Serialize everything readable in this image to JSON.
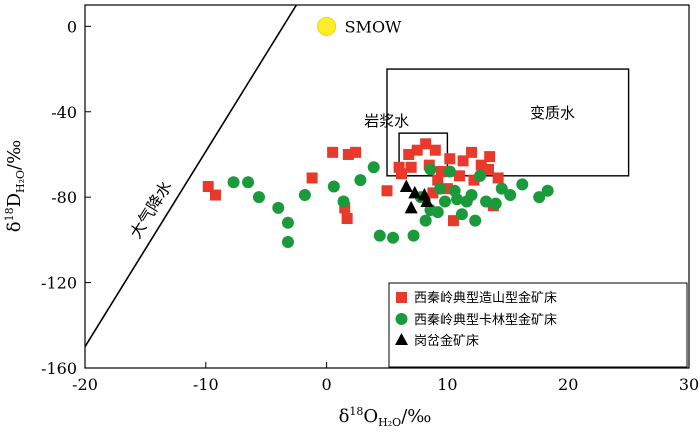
{
  "chart_data": {
    "type": "scatter",
    "title": "",
    "xlabel": "δ18OH2O/‰",
    "ylabel": "δ18DH2O/‰",
    "xlim": [
      -20,
      30
    ],
    "ylim": [
      -160,
      10
    ],
    "x_ticks": [
      -20,
      -10,
      0,
      10,
      20,
      30
    ],
    "y_ticks": [
      0,
      -40,
      -80,
      -120,
      -160
    ],
    "grid": false,
    "legend_position": "bottom-right",
    "annotations": {
      "meteoric_line_label": "大气降水",
      "smow_label": "SMOW",
      "magmatic_water_label": "岩浆水",
      "metamorphic_water_label": "变质水"
    },
    "meteoric_water_line": [
      [
        -20,
        -150
      ],
      [
        -2.5,
        10
      ]
    ],
    "smow_point": [
      0,
      0
    ],
    "magmatic_water_box": {
      "x": [
        6,
        10
      ],
      "y": [
        -70,
        -50
      ]
    },
    "metamorphic_water_box": {
      "x": [
        5,
        25
      ],
      "y": [
        -70,
        -20
      ]
    },
    "series": [
      {
        "name": "西秦岭典型造山型金矿床",
        "marker": "square",
        "color": "#e8392b",
        "points": [
          [
            -9.8,
            -75
          ],
          [
            -9.2,
            -79
          ],
          [
            -1.2,
            -71
          ],
          [
            0.5,
            -59
          ],
          [
            1.5,
            -85
          ],
          [
            1.7,
            -90
          ],
          [
            1.8,
            -60
          ],
          [
            2.4,
            -59
          ],
          [
            5,
            -77
          ],
          [
            6,
            -66
          ],
          [
            6.2,
            -69
          ],
          [
            6.8,
            -60
          ],
          [
            7,
            -66
          ],
          [
            7.5,
            -58
          ],
          [
            8.2,
            -55
          ],
          [
            8.5,
            -65
          ],
          [
            9,
            -58
          ],
          [
            9.2,
            -72
          ],
          [
            9.5,
            -68
          ],
          [
            10,
            -76
          ],
          [
            10.5,
            -91
          ],
          [
            11,
            -70
          ],
          [
            11.3,
            -63
          ],
          [
            12,
            -59
          ],
          [
            12.2,
            -72
          ],
          [
            12.8,
            -65
          ],
          [
            13.4,
            -67
          ],
          [
            13.5,
            -61
          ],
          [
            13.8,
            -84
          ],
          [
            14.2,
            -71
          ],
          [
            8.8,
            -78
          ],
          [
            10.2,
            -62
          ]
        ]
      },
      {
        "name": "西秦岭典型卡林型金矿床",
        "marker": "circle",
        "color": "#1a9a3a",
        "points": [
          [
            -7.7,
            -73
          ],
          [
            -6.5,
            -73
          ],
          [
            -5.6,
            -80
          ],
          [
            -4,
            -85
          ],
          [
            -3.2,
            -92
          ],
          [
            -3.2,
            -101
          ],
          [
            -1.8,
            -79
          ],
          [
            0.6,
            -75
          ],
          [
            1.4,
            -82
          ],
          [
            2.8,
            -72
          ],
          [
            3.9,
            -66
          ],
          [
            4.4,
            -98
          ],
          [
            5.5,
            -99
          ],
          [
            7.2,
            -98
          ],
          [
            7.8,
            -80
          ],
          [
            8.2,
            -91
          ],
          [
            8.6,
            -86
          ],
          [
            9.2,
            -87
          ],
          [
            9.4,
            -76
          ],
          [
            9.8,
            -82
          ],
          [
            10.2,
            -68
          ],
          [
            10.6,
            -77
          ],
          [
            11.2,
            -88
          ],
          [
            11.6,
            -82
          ],
          [
            12,
            -79
          ],
          [
            12.3,
            -91
          ],
          [
            12.7,
            -70
          ],
          [
            13.2,
            -82
          ],
          [
            14,
            -83
          ],
          [
            14.5,
            -76
          ],
          [
            15.2,
            -79
          ],
          [
            16.2,
            -74
          ],
          [
            17.6,
            -80
          ],
          [
            18.3,
            -77
          ],
          [
            8.6,
            -67
          ],
          [
            10.8,
            -81
          ]
        ]
      },
      {
        "name": "岗岔金矿床",
        "marker": "triangle",
        "color": "#000000",
        "points": [
          [
            6.6,
            -75
          ],
          [
            7.3,
            -78
          ],
          [
            7.0,
            -85
          ],
          [
            8.1,
            -79
          ],
          [
            8.3,
            -82
          ]
        ]
      }
    ]
  }
}
